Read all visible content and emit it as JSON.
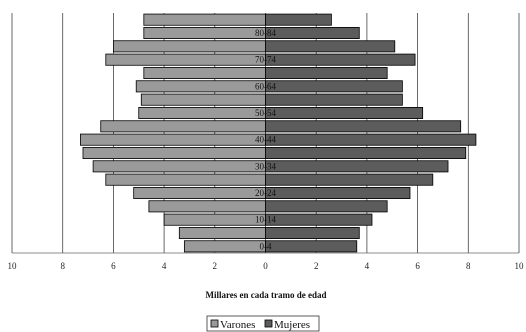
{
  "chart_data": {
    "type": "bar",
    "orientation": "horizontal",
    "subtype": "population-pyramid",
    "xlabel": "Millares en cada tramo de edad",
    "xlim": [
      -10,
      10
    ],
    "xticks": [
      -10,
      -8,
      -6,
      -4,
      -2,
      0,
      2,
      4,
      6,
      8,
      10
    ],
    "xtick_labels": [
      "10",
      "8",
      "6",
      "4",
      "2",
      "0",
      "2",
      "4",
      "6",
      "8",
      "10"
    ],
    "grid": true,
    "legend_position": "bottom",
    "categories": [
      "0-4",
      "5-9",
      "10-14",
      "15-19",
      "20-24",
      "25-29",
      "30-34",
      "35-39",
      "40-44",
      "45-49",
      "50-54",
      "55-59",
      "60-64",
      "65-69",
      "70-74",
      "75-79",
      "80-84",
      "85+"
    ],
    "category_labels_shown": [
      "0-4",
      "10-14",
      "20-24",
      "30-34",
      "40-44",
      "50-54",
      "60-64",
      "70-74",
      "80-84"
    ],
    "series": [
      {
        "name": "Varones",
        "side": "left",
        "color": "#9a9a9a",
        "values": [
          3.2,
          3.4,
          4.0,
          4.6,
          5.2,
          6.3,
          6.8,
          7.2,
          7.3,
          6.5,
          5.0,
          4.9,
          5.1,
          4.8,
          6.3,
          6.0,
          4.8,
          4.8
        ]
      },
      {
        "name": "Mujeres",
        "side": "right",
        "color": "#5c5c5c",
        "values": [
          3.6,
          3.7,
          4.2,
          4.8,
          5.7,
          6.6,
          7.2,
          7.9,
          8.3,
          7.7,
          6.2,
          5.4,
          5.4,
          4.8,
          5.9,
          5.1,
          3.7,
          2.6
        ]
      }
    ]
  }
}
